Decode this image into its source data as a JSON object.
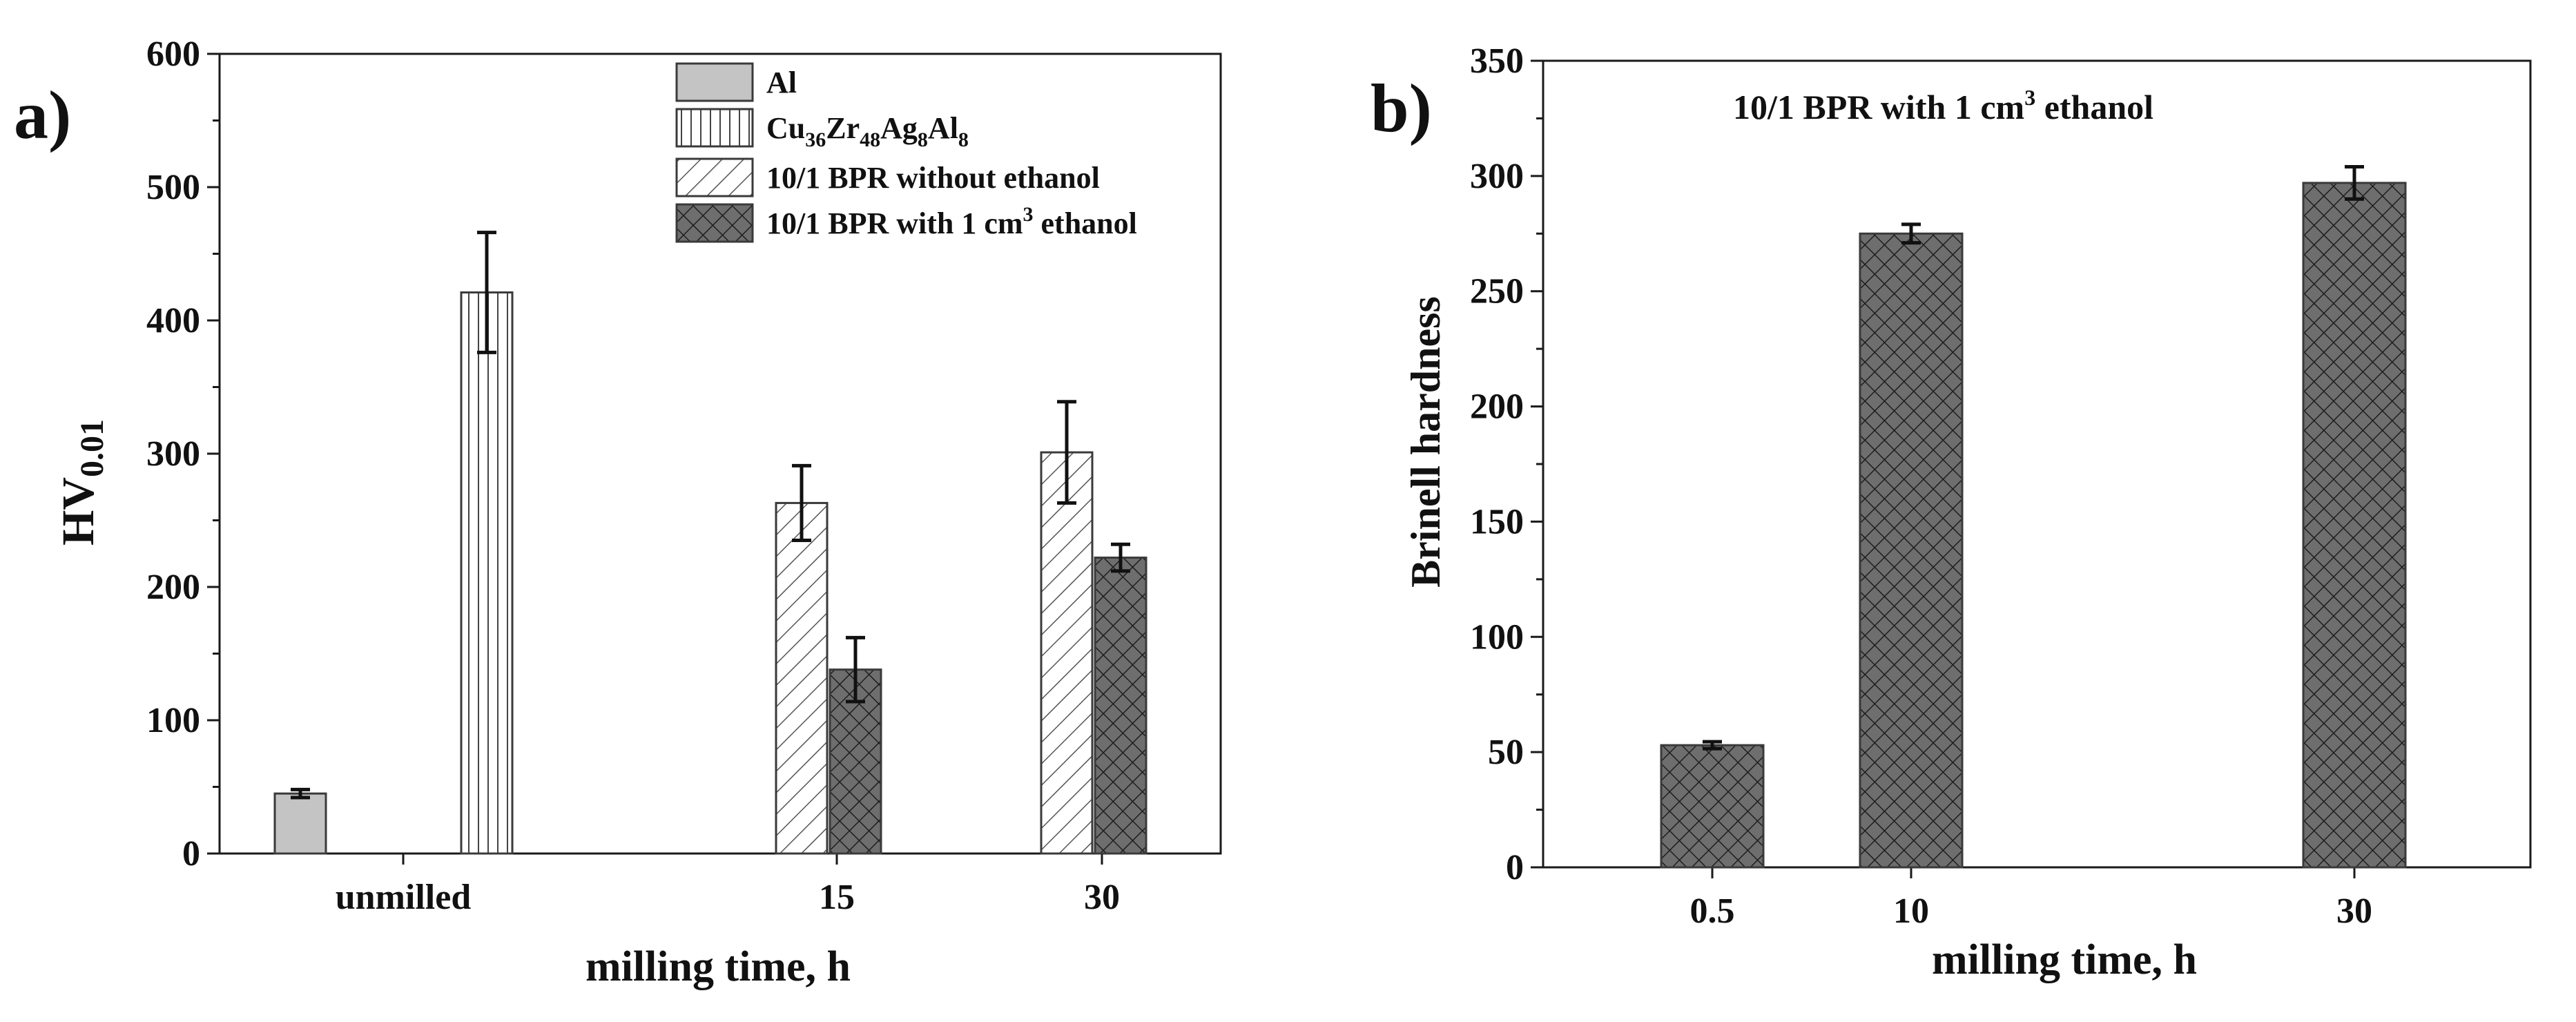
{
  "chart_data": [
    {
      "panel_label": "a)",
      "type": "bar",
      "xlabel": "milling time, h",
      "ylabel_main": "HV",
      "ylabel_sub": "0.01",
      "ylim": [
        0,
        600
      ],
      "y_ticks": [
        "0",
        "100",
        "200",
        "300",
        "400",
        "500",
        "600"
      ],
      "categories": [
        "unmilled",
        "15",
        "30"
      ],
      "series": [
        {
          "name": "Al",
          "legend_text": "Al",
          "fill": "#c4c4c4",
          "pattern": "solid",
          "values": [
            45,
            null,
            null
          ],
          "errors": [
            3,
            null,
            null
          ]
        },
        {
          "name": "Cu36Zr48Ag8Al8",
          "legend_parts": [
            "Cu",
            "36",
            "Zr",
            "48",
            "Ag",
            "8",
            "Al",
            "8"
          ],
          "fill": "#ffffff",
          "pattern": "vertical",
          "values": [
            421,
            null,
            null
          ],
          "errors": [
            45,
            null,
            null
          ]
        },
        {
          "name": "10/1 BPR without ethanol",
          "legend_text": "10/1 BPR without ethanol",
          "fill": "#ffffff",
          "pattern": "diagonal",
          "values": [
            null,
            263,
            301
          ],
          "errors": [
            null,
            28,
            38
          ]
        },
        {
          "name": "10/1 BPR with 1 cm3 ethanol",
          "legend_main": "10/1 BPR with 1 cm",
          "legend_sup": "3",
          "legend_tail": " ethanol",
          "fill": "#6e6e6e",
          "pattern": "crosshatch",
          "values": [
            null,
            138,
            222
          ],
          "errors": [
            null,
            24,
            10
          ]
        }
      ]
    },
    {
      "panel_label": "b)",
      "type": "bar",
      "xlabel": "milling time, h",
      "ylabel": "Brinell hardness",
      "ylim": [
        0,
        350
      ],
      "y_ticks": [
        "0",
        "50",
        "100",
        "150",
        "200",
        "250",
        "300",
        "350"
      ],
      "annotation_main": "10/1 BPR with 1 cm",
      "annotation_sup": "3",
      "annotation_tail": " ethanol",
      "categories": [
        "0.5",
        "10",
        "30"
      ],
      "series": [
        {
          "name": "10/1 BPR with 1 cm3 ethanol",
          "fill": "#6e6e6e",
          "pattern": "crosshatch",
          "values": [
            53,
            275,
            297
          ],
          "errors": [
            1.5,
            4,
            7
          ]
        }
      ]
    }
  ]
}
